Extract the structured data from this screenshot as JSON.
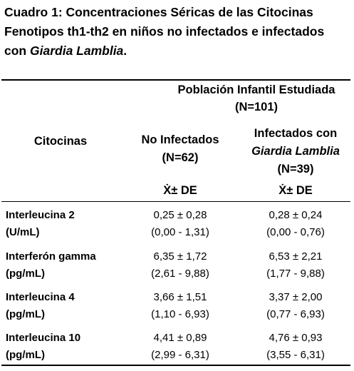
{
  "title": {
    "text": "Cuadro 1: Concentraciones Séricas de las Citocinas Fenotipos th1-th2 en niños no infectados e infectados con",
    "italic": "Giardia Lamblia",
    "end": "."
  },
  "header": {
    "group": "Población Infantil Estudiada",
    "group_n": "(N=101)",
    "first": "Citocinas",
    "col1": [
      "No Infectados",
      "(N=62)"
    ],
    "col2": [
      "Infectados con",
      "Giardia Lamblia",
      "(N=39)"
    ],
    "stat": [
      "Ẋ±  DE",
      "Ẋ±  DE"
    ]
  },
  "table": {
    "rows": [
      {
        "label": [
          "Interleucina 2",
          "(U/mL)"
        ],
        "cells": [
          [
            "0,25 ± 0,28",
            "(0,00 - 1,31)"
          ],
          [
            "0,28 ± 0,24",
            "(0,00 - 0,76)"
          ]
        ]
      },
      {
        "label": [
          "Interferón gamma",
          "(pg/mL)"
        ],
        "cells": [
          [
            "6,35 ± 1,72",
            "(2,61 - 9,88)"
          ],
          [
            "6,53 ± 2,21",
            "(1,77 - 9,88)"
          ]
        ]
      },
      {
        "label": [
          "Interleucina 4",
          "(pg/mL)"
        ],
        "cells": [
          [
            "3,66 ± 1,51",
            "(1,10 - 6,93)"
          ],
          [
            "3,37 ± 2,00",
            "(0,77 - 6,93)"
          ]
        ]
      },
      {
        "label": [
          "Interleucina 10",
          "(pg/mL)"
        ],
        "cells": [
          [
            "4,41 ± 0,89",
            "(2,99 - 6,31)"
          ],
          [
            "4,76 ± 0,93",
            "(3,55 - 6,31)"
          ]
        ]
      }
    ]
  }
}
